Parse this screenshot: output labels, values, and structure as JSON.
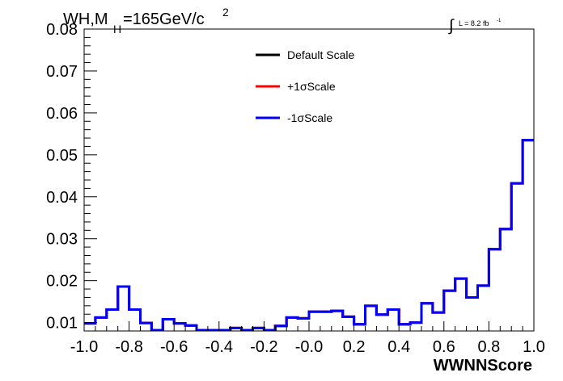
{
  "chart_data": {
    "type": "line",
    "style": "step-histogram",
    "title_parts": {
      "main": "WH,M",
      "sub": "H",
      "tail": "=165GeV/c",
      "sup": "2"
    },
    "lumi_label": {
      "integral": "∫",
      "text": "L = 8.2 fb",
      "sup": "-1"
    },
    "xlabel": "WWNNScore",
    "ylabel": "",
    "xlim": [
      -1.0,
      1.0
    ],
    "ylim": [
      0.008,
      0.08
    ],
    "x_ticks": [
      -1.0,
      -0.8,
      -0.6,
      -0.4,
      -0.2,
      0.0,
      0.2,
      0.4,
      0.6,
      0.8,
      1.0
    ],
    "x_tick_labels": [
      "-1.0",
      "-0.8",
      "-0.6",
      "-0.4",
      "-0.2",
      "-0.0",
      "0.2",
      "0.4",
      "0.6",
      "0.8",
      "1.0"
    ],
    "y_ticks": [
      0.01,
      0.02,
      0.03,
      0.04,
      0.05,
      0.06,
      0.07,
      0.08
    ],
    "y_tick_labels": [
      "0.01",
      "0.02",
      "0.03",
      "0.04",
      "0.05",
      "0.06",
      "0.07",
      "0.08"
    ],
    "legend_position": "top-center",
    "bin_edges": [
      -1.0,
      -0.95,
      -0.9,
      -0.85,
      -0.8,
      -0.75,
      -0.7,
      -0.65,
      -0.6,
      -0.55,
      -0.5,
      -0.45,
      -0.4,
      -0.35,
      -0.3,
      -0.25,
      -0.2,
      -0.15,
      -0.1,
      -0.05,
      0.0,
      0.05,
      0.1,
      0.15,
      0.2,
      0.25,
      0.3,
      0.35,
      0.4,
      0.45,
      0.5,
      0.55,
      0.6,
      0.65,
      0.7,
      0.75,
      0.8,
      0.85,
      0.9,
      0.95,
      1.0
    ],
    "series": [
      {
        "name": "Default Scale",
        "color": "#000000",
        "values": [
          0.0098,
          0.0112,
          0.0131,
          0.0186,
          0.0131,
          0.0099,
          0.0082,
          0.0108,
          0.0098,
          0.0093,
          0.0082,
          0.0082,
          0.0082,
          0.0087,
          0.0082,
          0.0087,
          0.0082,
          0.0092,
          0.0112,
          0.011,
          0.0126,
          0.0126,
          0.0128,
          0.0114,
          0.0096,
          0.014,
          0.0119,
          0.0131,
          0.0096,
          0.01,
          0.0146,
          0.0124,
          0.0176,
          0.0205,
          0.016,
          0.0188,
          0.0275,
          0.0323,
          0.0432,
          0.0535
        ]
      },
      {
        "name": "+1σScale",
        "color": "#ff0000",
        "values": [
          0.0098,
          0.0112,
          0.0131,
          0.0186,
          0.0131,
          0.0099,
          0.0082,
          0.0108,
          0.0098,
          0.0093,
          0.0082,
          0.0082,
          0.0082,
          0.0087,
          0.0082,
          0.0087,
          0.0082,
          0.0092,
          0.0112,
          0.011,
          0.0126,
          0.0126,
          0.0128,
          0.0114,
          0.0096,
          0.014,
          0.0119,
          0.0131,
          0.0096,
          0.01,
          0.0146,
          0.0124,
          0.0176,
          0.0205,
          0.016,
          0.0188,
          0.0275,
          0.0323,
          0.0432,
          0.0535
        ]
      },
      {
        "name": "-1σScale",
        "color": "#0000ff",
        "values": [
          0.0098,
          0.0112,
          0.0131,
          0.0186,
          0.0131,
          0.0099,
          0.0082,
          0.0108,
          0.0098,
          0.0093,
          0.0082,
          0.0082,
          0.0082,
          0.0087,
          0.0082,
          0.0087,
          0.0082,
          0.0092,
          0.0112,
          0.011,
          0.0126,
          0.0126,
          0.0128,
          0.0114,
          0.0096,
          0.014,
          0.0119,
          0.0131,
          0.0096,
          0.01,
          0.0146,
          0.0124,
          0.0176,
          0.0205,
          0.016,
          0.0188,
          0.0275,
          0.0323,
          0.0432,
          0.0535
        ]
      }
    ]
  }
}
